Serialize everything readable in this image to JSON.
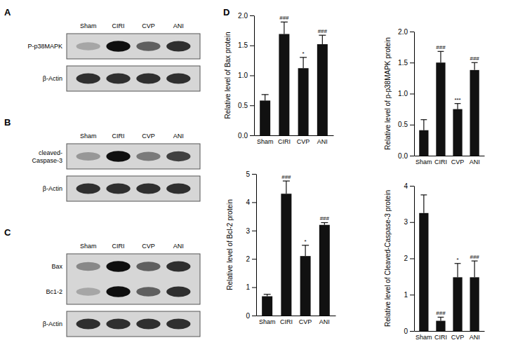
{
  "figure": {
    "d_label": "D"
  },
  "blots": [
    {
      "panel": "A",
      "lanes": [
        "Sham",
        "CIRI",
        "CVP",
        "ANI"
      ],
      "boxes": [
        {
          "rows": [
            [
              "P-p38MAPK"
            ]
          ]
        },
        {
          "rows": [
            [
              "β-Actin"
            ]
          ]
        }
      ]
    },
    {
      "panel": "B",
      "lanes": [
        "Sham",
        "CIRI",
        "CVP",
        "ANI"
      ],
      "boxes": [
        {
          "rows": [
            [
              "cleaved-",
              "Caspase-3"
            ]
          ]
        },
        {
          "rows": [
            [
              "β-Actin"
            ]
          ]
        }
      ]
    },
    {
      "panel": "C",
      "lanes": [
        "Sham",
        "CIRI",
        "CVP",
        "ANI"
      ],
      "boxes": [
        {
          "rows": [
            [
              "Bax"
            ],
            [
              "Bc1-2"
            ]
          ]
        },
        {
          "rows": [
            [
              "β-Actin"
            ]
          ]
        }
      ]
    }
  ],
  "chart_data": [
    {
      "type": "bar",
      "y_label": "Relative level of Bax protein",
      "categories": [
        "Sham",
        "CIRI",
        "CVP",
        "ANI"
      ],
      "values": [
        0.58,
        1.69,
        1.12,
        1.52
      ],
      "errors": [
        0.1,
        0.2,
        0.18,
        0.15
      ],
      "annotations": [
        null,
        "###",
        "*",
        "###"
      ],
      "color": "#111111",
      "ylim": [
        0,
        2
      ],
      "yticks": [
        {
          "value": 0,
          "label": "0.0"
        },
        0.5,
        {
          "value": 1,
          "label": "1.0"
        },
        1.5,
        {
          "value": 2,
          "label": "2.0"
        }
      ]
    },
    {
      "type": "bar",
      "y_label": "Relative level of p-p38MAPK protein",
      "categories": [
        "Sham",
        "CIRI",
        "CVP",
        "ANI"
      ],
      "values": [
        0.41,
        1.5,
        0.75,
        1.38
      ],
      "errors": [
        0.17,
        0.18,
        0.09,
        0.12
      ],
      "annotations": [
        null,
        "###",
        "***",
        "###"
      ],
      "color": "#111111",
      "ylim": [
        0,
        2
      ],
      "yticks": [
        {
          "value": 0,
          "label": "0.0"
        },
        0.5,
        {
          "value": 1,
          "label": "1.0"
        },
        1.5,
        {
          "value": 2,
          "label": "2.0"
        }
      ]
    },
    {
      "type": "bar",
      "y_label": "Relative level of Bcl-2 protein",
      "categories": [
        "Sham",
        "CIRI",
        "CVP",
        "ANI"
      ],
      "values": [
        0.68,
        4.3,
        2.1,
        3.2
      ],
      "errors": [
        0.07,
        0.45,
        0.38,
        0.08
      ],
      "annotations": [
        null,
        "###",
        "*",
        "###"
      ],
      "color": "#111111",
      "ylim": [
        0,
        5
      ],
      "yticks": [
        0,
        1,
        2,
        3,
        4,
        5
      ]
    },
    {
      "type": "bar",
      "y_label": "Relative level of Cleaved-Caspase-3 protein",
      "categories": [
        "Sham",
        "CIRI",
        "CVP",
        "ANI"
      ],
      "values": [
        3.25,
        0.28,
        1.48,
        1.48
      ],
      "errors": [
        0.5,
        0.1,
        0.38,
        0.45
      ],
      "annotations": [
        null,
        "###",
        "*",
        "###"
      ],
      "color": "#111111",
      "ylim": [
        0,
        4
      ],
      "yticks": [
        0,
        1,
        2,
        3,
        4
      ]
    }
  ]
}
